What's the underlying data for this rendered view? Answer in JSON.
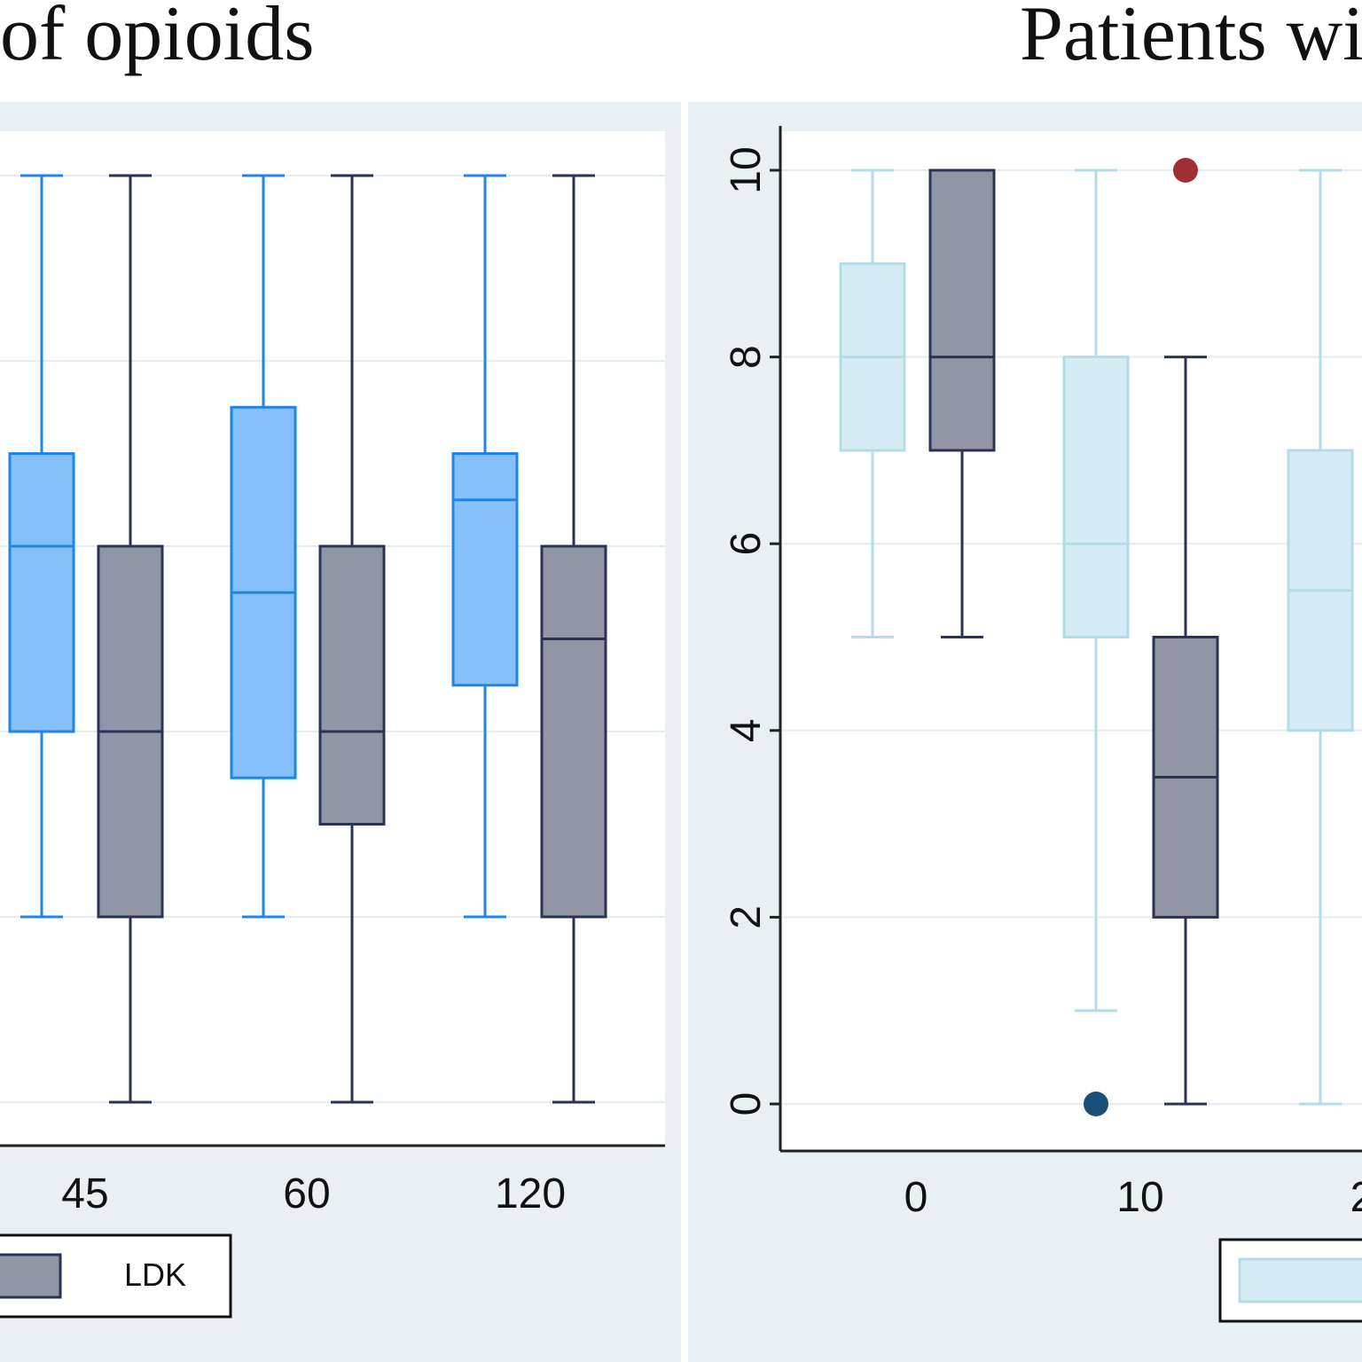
{
  "titles": {
    "left": "of opioids",
    "right": "Patients wi"
  },
  "colors": {
    "left_a_fill": "#85c0fb",
    "left_a_stroke": "#1f86e8",
    "b_fill": "#9096a6",
    "b_stroke": "#2a3356",
    "right_a_fill": "#d6ecf4",
    "right_a_stroke": "#b4dbe8",
    "outlier_red": "#9e2f35",
    "outlier_blue": "#1b4f78",
    "grid": "#e4edf2"
  },
  "legend": {
    "left_series_b_label": "LDK"
  },
  "chart_data": [
    {
      "type": "box",
      "title": "of opioids",
      "categories": [
        "45",
        "60",
        "120"
      ],
      "ylim": [
        0,
        10
      ],
      "grid": true,
      "legend_position": "bottom",
      "series": [
        {
          "key": "a",
          "boxes": [
            {
              "category": "45",
              "min": 2,
              "q1": 4,
              "median": 6,
              "q3": 7,
              "max": 10
            },
            {
              "category": "60",
              "min": 2,
              "q1": 3.5,
              "median": 5.5,
              "q3": 7.5,
              "max": 10
            },
            {
              "category": "120",
              "min": 2,
              "q1": 4.5,
              "median": 6.5,
              "q3": 7,
              "max": 10
            }
          ]
        },
        {
          "key": "b",
          "name": "LDK",
          "boxes": [
            {
              "category": "45",
              "min": 0,
              "q1": 2,
              "median": 4,
              "q3": 6,
              "max": 10
            },
            {
              "category": "60",
              "min": 0,
              "q1": 3,
              "median": 4,
              "q3": 6,
              "max": 10
            },
            {
              "category": "120",
              "min": 0,
              "q1": 2,
              "median": 5,
              "q3": 6,
              "max": 10
            }
          ]
        }
      ]
    },
    {
      "type": "box",
      "title": "Patients wi",
      "categories": [
        "0",
        "10",
        "2"
      ],
      "yticks": [
        0,
        2,
        4,
        6,
        8,
        10
      ],
      "ylim": [
        0,
        10
      ],
      "grid": true,
      "legend_position": "bottom",
      "series": [
        {
          "key": "a",
          "boxes": [
            {
              "category": "0",
              "min": 5,
              "q1": 7,
              "median": 8,
              "q3": 9,
              "max": 10
            },
            {
              "category": "10",
              "min": 1,
              "q1": 5,
              "median": 6,
              "q3": 8,
              "max": 10,
              "outliers": [
                0
              ]
            },
            {
              "category": "2",
              "min": 0,
              "q1": 4,
              "median": 5.5,
              "q3": 7,
              "max": 10
            }
          ]
        },
        {
          "key": "b",
          "boxes": [
            {
              "category": "0",
              "min": 5,
              "q1": 7,
              "median": 8,
              "q3": 10,
              "max": 10
            },
            {
              "category": "10",
              "min": 0,
              "q1": 2,
              "median": 3.5,
              "q3": 5,
              "max": 8,
              "outliers": [
                10
              ]
            }
          ]
        }
      ]
    }
  ]
}
